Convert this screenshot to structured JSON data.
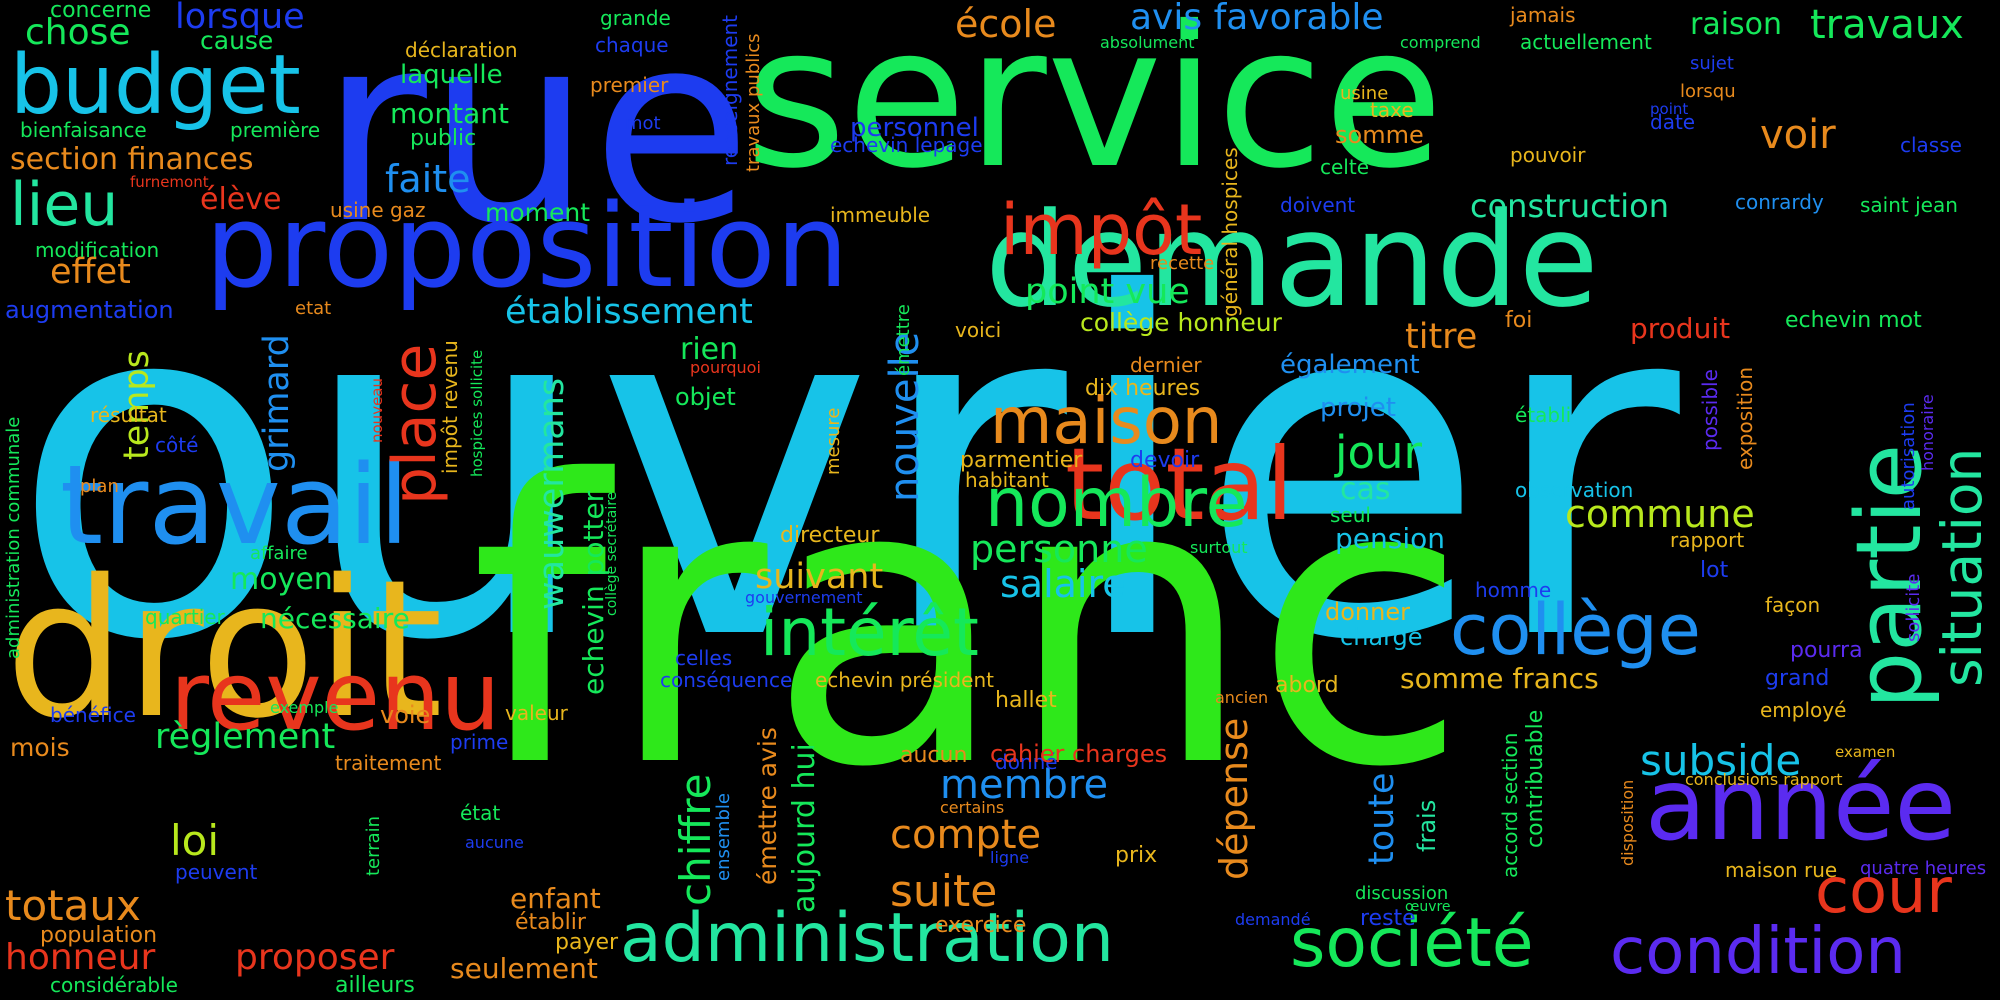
{
  "colors": {
    "background": "#000000",
    "cyan": "#17c3e8",
    "blue": "#1d3cf0",
    "green": "#15e85a",
    "lime": "#2ee81a",
    "teal": "#23e6a0",
    "yellow": "#e8b61d",
    "orange": "#e88a1d",
    "red": "#e8351d",
    "violet": "#5b2bf0",
    "yellowgreen": "#b8e81d",
    "skyblue": "#1f8ff0"
  },
  "words": [
    "ouvrier",
    "franc",
    "rue",
    "service",
    "demande",
    "droit",
    "proposition",
    "travail",
    "revenu",
    "total",
    "année",
    "collège",
    "administration",
    "société",
    "condition",
    "partie",
    "budget",
    "impôt",
    "maison",
    "nombre",
    "intérêt",
    "cour",
    "situation",
    "place",
    "lieu",
    "section finances",
    "avis favorable",
    "école",
    "raison",
    "travaux",
    "faite",
    "élève",
    "effet",
    "établissement",
    "construction",
    "point vue",
    "collège honneur",
    "titre",
    "voir",
    "commune",
    "jour",
    "personne",
    "salaire",
    "cas",
    "pension",
    "grimard",
    "temps",
    "wauwermans",
    "echevin potter",
    "nouvelle",
    "chiffre",
    "suite",
    "compte",
    "membre",
    "dépense",
    "toute",
    "subside",
    "loi",
    "totaux",
    "règlement",
    "honneur",
    "proposer",
    "seulement",
    "suivant",
    "moyen",
    "nécessaire",
    "rien",
    "objet",
    "directeur",
    "parmentier",
    "habitant",
    "aujourd hui",
    "émettre avis",
    "somme francs",
    "concerne",
    "chose",
    "cause",
    "lorsque",
    "bienfaisance",
    "première",
    "modification",
    "augmentation",
    "furnemont",
    "usine gaz",
    "moment",
    "montant",
    "public",
    "laquelle",
    "déclaration",
    "grande",
    "chaque",
    "premier",
    "mot",
    "renseignement",
    "travaux publics",
    "personnel",
    "echevin lepage",
    "immeuble",
    "recette",
    "général hospices",
    "taxe",
    "usine",
    "somme",
    "celte",
    "jamais",
    "actuellement",
    "comprend",
    "absolument",
    "sujet",
    "lorsqu",
    "point",
    "date",
    "classe",
    "pouvoir",
    "doivent",
    "conrardy",
    "saint jean",
    "etat",
    "voici",
    "également",
    "produit",
    "echevin mot",
    "dernier",
    "dix heures",
    "projet",
    "établi",
    "possible",
    "exposition",
    "autorisation",
    "honoraire",
    "foi",
    "pourquoi",
    "nouveau",
    "impôt revenu",
    "hospices sollicite",
    "émettre",
    "mesure",
    "devoir",
    "observation",
    "seul",
    "rapport",
    "surtout",
    "lot",
    "homme",
    "donner",
    "charge",
    "façon",
    "pourra",
    "grand",
    "employé",
    "examen",
    "conclusions rapport",
    "sollicite",
    "résultat",
    "côté",
    "plan",
    "affaire",
    "quartier",
    "administration communale",
    "collège secrétaire",
    "gouvernement",
    "celles",
    "conséquence",
    "echevin président",
    "hallet",
    "ancien",
    "abord",
    "accord section",
    "contribuable",
    "disposition",
    "frais",
    "bénéfice",
    "exemple",
    "valeur",
    "voie",
    "prime",
    "mois",
    "traitement",
    "état",
    "terrain",
    "aucune",
    "peuvent",
    "ensemble",
    "donné",
    "aucun",
    "cahier charges",
    "certains",
    "prix",
    "ligne",
    "maison rue",
    "quatre heures",
    "enfant",
    "établir",
    "payer",
    "population",
    "considérable",
    "ailleurs",
    "exercice",
    "demandé",
    "discussion",
    "reste",
    "œuvre"
  ]
}
